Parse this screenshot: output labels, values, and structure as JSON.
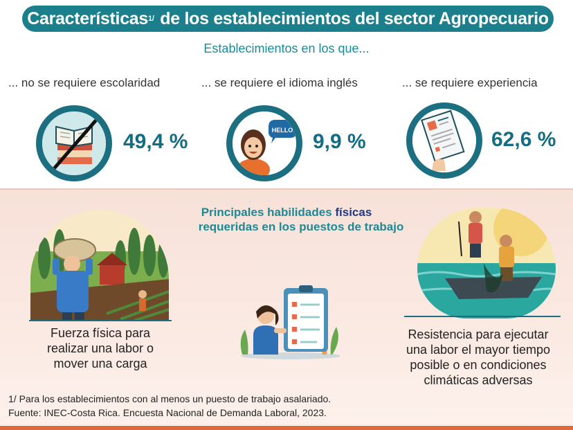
{
  "header": {
    "title_part1": "Características",
    "title_sup": "1/",
    "title_part2": " de los establecimientos del sector Agropecuario",
    "subtitle": "Establecimientos en los que..."
  },
  "requirements": [
    {
      "label": "... no se requiere escolaridad",
      "value": "49,4 %",
      "icon": "books-icon"
    },
    {
      "label": "... se requiere el idioma inglés",
      "value": "9,9 %",
      "icon": "speaker-hello-icon",
      "bubble": "HELLO"
    },
    {
      "label": "... se requiere experiencia",
      "value": "62,6 %",
      "icon": "resume-document-icon"
    }
  ],
  "skills": {
    "title_part1": "Principales habilidades ",
    "title_highlight": "físicas",
    "title_part2": " requeridas en los puestos de trabajo",
    "left_text": "Fuerza física para realizar una labor o mover una carga",
    "right_text": "Resistencia para ejecutar una labor el mayor tiempo posible o en condiciones climáticas adversas"
  },
  "footnotes": {
    "note": "1/ Para los establecimientos con al menos un puesto de trabajo asalariado.",
    "source": "Fuente: INEC-Costa Rica. Encuesta Nacional de Demanda Laboral, 2023."
  },
  "colors": {
    "primary": "#1b7f8c",
    "dark": "#146d80",
    "accent": "#e06a3b",
    "highlight": "#1f3a8a"
  }
}
